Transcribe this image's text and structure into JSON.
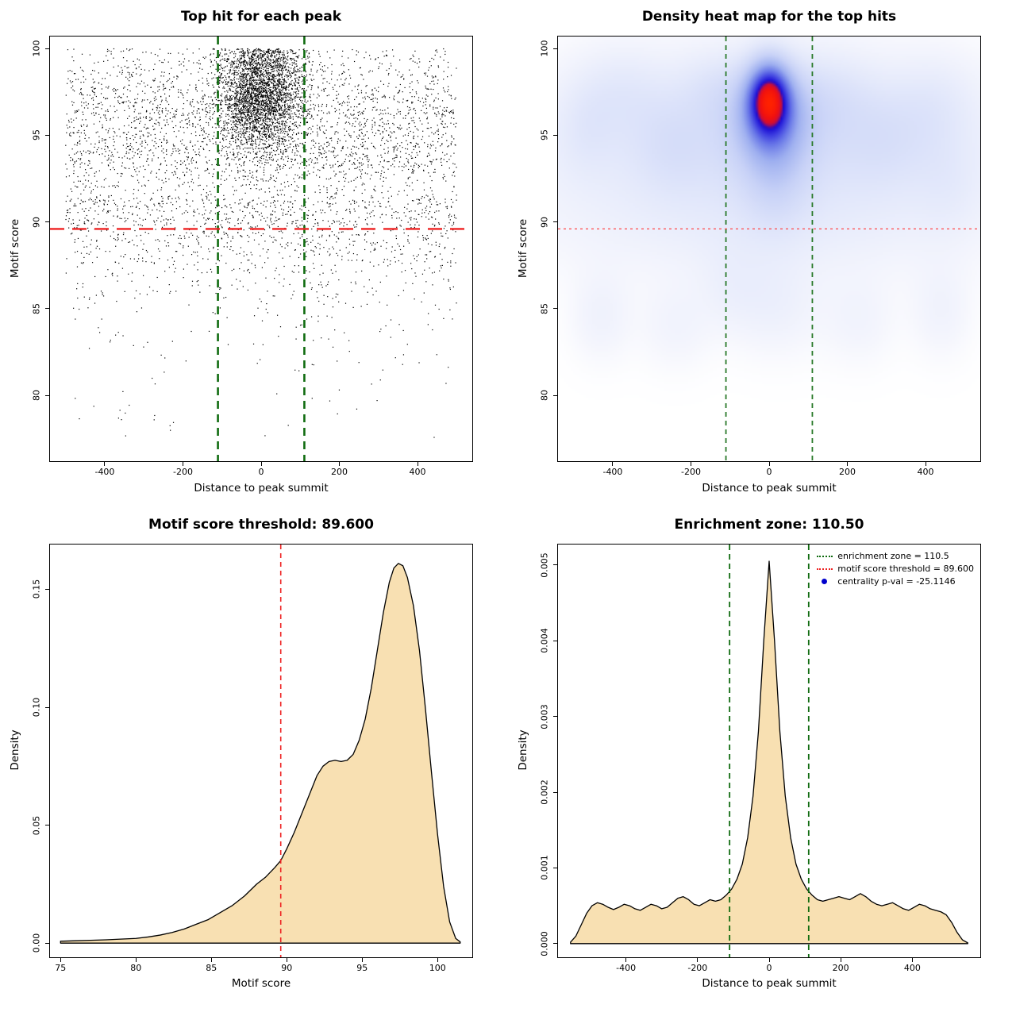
{
  "chart_data": [
    {
      "id": "top-hit-scatter",
      "type": "scatter",
      "title": "Top hit for each peak",
      "xlabel": "Distance to peak summit",
      "ylabel": "Motif score",
      "xlim": [
        -540,
        540
      ],
      "ylim": [
        76.2,
        100.7
      ],
      "xticks": [
        -400,
        -200,
        0,
        200,
        400
      ],
      "xtick_labels": [
        "-400",
        "-200",
        "0",
        "200",
        "400"
      ],
      "yticks": [
        80,
        85,
        90,
        95,
        100
      ],
      "ytick_labels": [
        "80",
        "85",
        "90",
        "95",
        "100"
      ],
      "motif_score_threshold": 89.6,
      "enrichment_zone": [
        -110.5,
        110.5
      ],
      "point_color": "#000000",
      "threshold_line_color": "#ee2222",
      "zone_line_color": "#0f6b0f",
      "point_model": {
        "seed": 20240601,
        "y_reflect_max": 100.0,
        "components": [
          {
            "kind": "gauss2d",
            "n": 3200,
            "cx": 0,
            "cy": 97.3,
            "sx": 55,
            "sy": 1.7
          },
          {
            "kind": "uniform_x_gauss_y",
            "n": 3000,
            "xmin": -500,
            "xmax": 500,
            "cy": 95.2,
            "sy": 2.7
          },
          {
            "kind": "uniform_x_halfgauss_down",
            "n": 1100,
            "xmin": -500,
            "xmax": 500,
            "ytop": 91.5,
            "sy": 3.6,
            "ymin": 77
          },
          {
            "kind": "uniform2d",
            "n": 50,
            "xmin": -480,
            "xmax": 480,
            "ymin": 77.5,
            "ymax": 84
          }
        ]
      }
    },
    {
      "id": "top-hit-density-heatmap",
      "type": "heatmap",
      "title": "Density heat map for the top hits",
      "xlabel": "Distance to peak summit",
      "ylabel": "Motif score",
      "xlim": [
        -540,
        540
      ],
      "ylim": [
        76.2,
        100.7
      ],
      "xticks": [
        -400,
        -200,
        0,
        200,
        400
      ],
      "xtick_labels": [
        "-400",
        "-200",
        "0",
        "200",
        "400"
      ],
      "yticks": [
        80,
        85,
        90,
        95,
        100
      ],
      "ytick_labels": [
        "80",
        "85",
        "90",
        "95",
        "100"
      ],
      "motif_score_threshold": 89.6,
      "enrichment_zone": [
        -110.5,
        110.5
      ],
      "threshold_line_color": "#ff4747",
      "zone_line_color": "#2a7a2a",
      "hotspot": {
        "x": 0,
        "y": 97.2
      },
      "kernels": [
        {
          "x": 0,
          "y": 97.2,
          "sx": 38,
          "sy": 1.5,
          "w": 1.0
        },
        {
          "x": 5,
          "y": 96.3,
          "sx": 75,
          "sy": 2.1,
          "w": 0.5
        },
        {
          "x": 15,
          "y": 93.0,
          "sx": 60,
          "sy": 2.4,
          "w": 0.22
        },
        {
          "x": 0,
          "y": 96.0,
          "sx": 430,
          "sy": 3.0,
          "w": 0.26
        },
        {
          "x": 0,
          "y": 92.5,
          "sx": 460,
          "sy": 2.6,
          "w": 0.16
        },
        {
          "x": 0,
          "y": 89.2,
          "sx": 440,
          "sy": 2.2,
          "w": 0.12
        },
        {
          "x": -380,
          "y": 97.8,
          "sx": 80,
          "sy": 1.8,
          "w": 0.12
        },
        {
          "x": -470,
          "y": 95.5,
          "sx": 55,
          "sy": 2.0,
          "w": 0.1
        },
        {
          "x": -250,
          "y": 94.5,
          "sx": 70,
          "sy": 2.0,
          "w": 0.1
        },
        {
          "x": -150,
          "y": 98.0,
          "sx": 60,
          "sy": 1.5,
          "w": 0.1
        },
        {
          "x": 170,
          "y": 97.5,
          "sx": 70,
          "sy": 1.8,
          "w": 0.11
        },
        {
          "x": 300,
          "y": 95.0,
          "sx": 80,
          "sy": 2.2,
          "w": 0.11
        },
        {
          "x": 430,
          "y": 97.0,
          "sx": 70,
          "sy": 2.0,
          "w": 0.11
        },
        {
          "x": 460,
          "y": 92.0,
          "sx": 60,
          "sy": 2.0,
          "w": 0.08
        },
        {
          "x": -430,
          "y": 84.5,
          "sx": 55,
          "sy": 1.8,
          "w": 0.14
        },
        {
          "x": -240,
          "y": 84.0,
          "sx": 65,
          "sy": 1.8,
          "w": 0.12
        },
        {
          "x": 20,
          "y": 85.0,
          "sx": 80,
          "sy": 2.0,
          "w": 0.15
        },
        {
          "x": 230,
          "y": 84.3,
          "sx": 65,
          "sy": 1.8,
          "w": 0.12
        },
        {
          "x": 440,
          "y": 84.8,
          "sx": 55,
          "sy": 1.9,
          "w": 0.13
        },
        {
          "x": -100,
          "y": 86.0,
          "sx": 60,
          "sy": 1.8,
          "w": 0.1
        }
      ],
      "colormap": [
        [
          0.0,
          "#ffffff"
        ],
        [
          0.05,
          "#f5f6fd"
        ],
        [
          0.15,
          "#e4e9fb"
        ],
        [
          0.3,
          "#c8d2f7"
        ],
        [
          0.45,
          "#9fb0f0"
        ],
        [
          0.58,
          "#6b7ae8"
        ],
        [
          0.7,
          "#3a3ae0"
        ],
        [
          0.78,
          "#1a0bd2"
        ],
        [
          0.84,
          "#cf0e35"
        ],
        [
          0.9,
          "#f01010"
        ],
        [
          1.0,
          "#ff2200"
        ]
      ]
    },
    {
      "id": "motif-score-density",
      "type": "area",
      "title": "Motif score threshold: 89.600",
      "xlabel": "Motif score",
      "ylabel": "Density",
      "xlim": [
        74.3,
        102.3
      ],
      "ylim": [
        -0.006,
        0.169
      ],
      "xticks": [
        75,
        80,
        85,
        90,
        95,
        100
      ],
      "xtick_labels": [
        "75",
        "80",
        "85",
        "90",
        "95",
        "100"
      ],
      "yticks": [
        0.0,
        0.05,
        0.1,
        0.15
      ],
      "ytick_labels": [
        "0.00",
        "0.05",
        "0.10",
        "0.15"
      ],
      "threshold_x": 89.6,
      "fill_color": "#f8e0b2",
      "line_color": "#000000",
      "threshold_line_color": "#ee2222",
      "curve": {
        "x": [
          75.0,
          76,
          77,
          78,
          79,
          80,
          80.8,
          81.6,
          82.4,
          83.2,
          84,
          84.8,
          85.6,
          86.4,
          87.2,
          88,
          88.6,
          89.2,
          89.6,
          90,
          90.5,
          91,
          91.5,
          92,
          92.4,
          92.8,
          93.2,
          93.6,
          94,
          94.4,
          94.8,
          95.2,
          95.6,
          96,
          96.4,
          96.8,
          97.1,
          97.4,
          97.7,
          98,
          98.4,
          98.8,
          99.2,
          99.6,
          100,
          100.4,
          100.8,
          101.2,
          101.5
        ],
        "y": [
          0.0008,
          0.001,
          0.0012,
          0.0014,
          0.0017,
          0.002,
          0.0026,
          0.0034,
          0.0045,
          0.006,
          0.008,
          0.01,
          0.013,
          0.016,
          0.02,
          0.025,
          0.028,
          0.032,
          0.035,
          0.04,
          0.047,
          0.055,
          0.063,
          0.071,
          0.075,
          0.077,
          0.0775,
          0.077,
          0.0775,
          0.08,
          0.086,
          0.095,
          0.108,
          0.124,
          0.14,
          0.153,
          0.159,
          0.161,
          0.16,
          0.155,
          0.143,
          0.124,
          0.099,
          0.072,
          0.046,
          0.024,
          0.009,
          0.002,
          0.0005
        ]
      }
    },
    {
      "id": "distance-density",
      "type": "area",
      "title": "Enrichment zone: 110.50",
      "xlabel": "Distance to peak summit",
      "ylabel": "Density",
      "xlim": [
        -590,
        590
      ],
      "ylim": [
        -0.00018,
        0.00527
      ],
      "xticks": [
        -400,
        -200,
        0,
        200,
        400
      ],
      "xtick_labels": [
        "-400",
        "-200",
        "0",
        "200",
        "400"
      ],
      "yticks": [
        0,
        0.001,
        0.002,
        0.003,
        0.004,
        0.005
      ],
      "ytick_labels": [
        "0.000",
        "0.001",
        "0.002",
        "0.003",
        "0.004",
        "0.005"
      ],
      "zone_x": [
        -110.5,
        110.5
      ],
      "fill_color": "#f8e0b2",
      "line_color": "#000000",
      "zone_line_color": "#0f6b0f",
      "legend": [
        {
          "label": "enrichment zone = 110.5",
          "marker": "dotted-line",
          "color": "#0f6b0f"
        },
        {
          "label": "motif score threshold = 89.600",
          "marker": "dotted-line",
          "color": "#ee2222"
        },
        {
          "label": "centrality p-val = -25.1146",
          "marker": "point",
          "color": "#0000cc"
        }
      ],
      "curve": {
        "x": [
          -555,
          -540,
          -525,
          -510,
          -495,
          -480,
          -465,
          -450,
          -435,
          -420,
          -405,
          -390,
          -375,
          -360,
          -345,
          -330,
          -315,
          -300,
          -285,
          -270,
          -255,
          -240,
          -225,
          -210,
          -195,
          -180,
          -165,
          -150,
          -135,
          -120,
          -105,
          -90,
          -75,
          -60,
          -45,
          -30,
          -15,
          0,
          15,
          30,
          45,
          60,
          75,
          90,
          105,
          120,
          135,
          150,
          165,
          180,
          195,
          210,
          225,
          240,
          255,
          270,
          285,
          300,
          315,
          330,
          345,
          360,
          375,
          390,
          405,
          420,
          435,
          450,
          465,
          480,
          495,
          510,
          525,
          540,
          555
        ],
        "y": [
          2e-05,
          0.0001,
          0.00025,
          0.0004,
          0.0005,
          0.00054,
          0.00052,
          0.00048,
          0.00045,
          0.00048,
          0.00052,
          0.0005,
          0.00046,
          0.00044,
          0.00048,
          0.00052,
          0.0005,
          0.00046,
          0.00048,
          0.00054,
          0.0006,
          0.00062,
          0.00058,
          0.00052,
          0.0005,
          0.00054,
          0.00058,
          0.00056,
          0.00058,
          0.00064,
          0.00072,
          0.00085,
          0.00105,
          0.0014,
          0.00195,
          0.0028,
          0.004,
          0.00505,
          0.004,
          0.0028,
          0.00195,
          0.0014,
          0.00105,
          0.00085,
          0.00072,
          0.00064,
          0.00058,
          0.00056,
          0.00058,
          0.0006,
          0.00062,
          0.0006,
          0.00058,
          0.00062,
          0.00066,
          0.00062,
          0.00056,
          0.00052,
          0.0005,
          0.00052,
          0.00054,
          0.0005,
          0.00046,
          0.00044,
          0.00048,
          0.00052,
          0.0005,
          0.00046,
          0.00044,
          0.00042,
          0.00038,
          0.00028,
          0.00015,
          5e-05,
          1e-05
        ]
      }
    }
  ]
}
